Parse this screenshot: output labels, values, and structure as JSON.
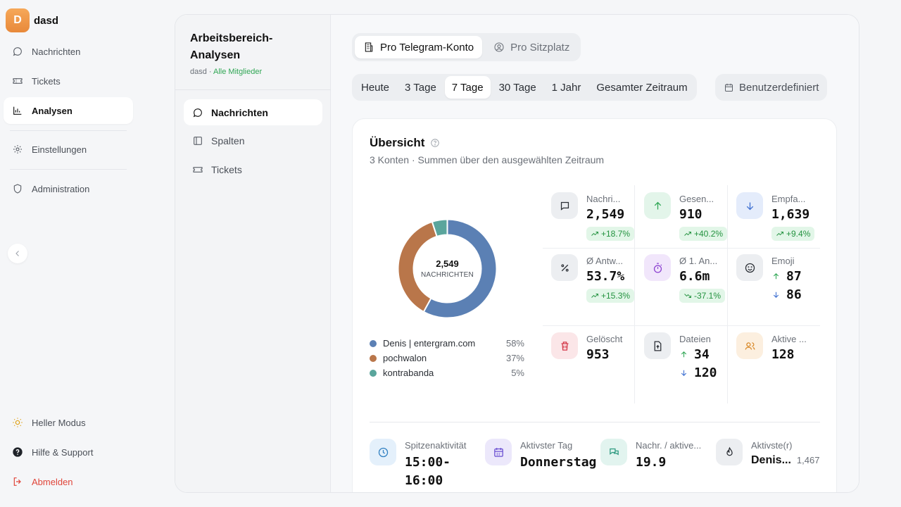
{
  "app": {
    "logo_letter": "D",
    "name": "dasd"
  },
  "sidebar": {
    "items": [
      {
        "label": "Nachrichten",
        "icon": "chat-bubble-icon"
      },
      {
        "label": "Tickets",
        "icon": "ticket-icon"
      },
      {
        "label": "Analysen",
        "icon": "bar-chart-icon",
        "active": true
      },
      {
        "label": "Einstellungen",
        "icon": "gear-icon"
      },
      {
        "label": "Administration",
        "icon": "shield-icon"
      }
    ],
    "footer": {
      "theme": "Heller Modus",
      "help": "Hilfe & Support",
      "logout": "Abmelden"
    }
  },
  "workspace": {
    "title": "Arbeitsbereich-Analysen",
    "sub_name": "dasd",
    "sub_sep": " · ",
    "sub_scope": "Alle Mitglieder",
    "items": [
      {
        "label": "Nachrichten",
        "active": true
      },
      {
        "label": "Spalten"
      },
      {
        "label": "Tickets"
      }
    ]
  },
  "view_toggle": {
    "options": [
      "Pro Telegram-Konto",
      "Pro Sitzplatz"
    ],
    "selected": "Pro Telegram-Konto"
  },
  "period": {
    "options": [
      "Heute",
      "3 Tage",
      "7 Tage",
      "30 Tage",
      "1 Jahr",
      "Gesamter Zeitraum"
    ],
    "selected": "7 Tage",
    "custom_label": "Benutzerdefiniert"
  },
  "overview": {
    "title": "Übersicht",
    "subtitle": "3 Konten · Summen über den ausgewählten Zeitraum",
    "donut": {
      "total": "2,549",
      "total_label": "NACHRICHTEN",
      "segments": [
        {
          "name": "Denis | entergram.com",
          "pct_label": "58%",
          "value": 0.58,
          "color": "#5b80b4"
        },
        {
          "name": "pochwalon",
          "pct_label": "37%",
          "value": 0.37,
          "color": "#b9764a"
        },
        {
          "name": "kontrabanda",
          "pct_label": "5%",
          "value": 0.05,
          "color": "#5aa59c"
        }
      ]
    },
    "stats": {
      "messages": {
        "label": "Nachri...",
        "value": "2,549",
        "delta": "+18.7%"
      },
      "sent": {
        "label": "Gesen...",
        "value": "910",
        "delta": "+40.2%"
      },
      "received": {
        "label": "Empfa...",
        "value": "1,639",
        "delta": "+9.4%"
      },
      "reply_rate": {
        "label": "Ø Antw...",
        "value": "53.7%",
        "delta": "+15.3%"
      },
      "first_reply": {
        "label": "Ø 1. An...",
        "value": "6.6m",
        "delta": "-37.1%"
      },
      "emoji": {
        "label": "Emoji",
        "up": "87",
        "down": "86"
      },
      "deleted": {
        "label": "Gelöscht",
        "value": "953"
      },
      "files": {
        "label": "Dateien",
        "up": "34",
        "down": "120"
      },
      "active": {
        "label": "Aktive ...",
        "value": "128"
      }
    },
    "kpis": {
      "peak": {
        "label": "Spitzenaktivität",
        "value": "15:00-\n16:00"
      },
      "day": {
        "label": "Aktivster Tag",
        "value": "Donnerstag"
      },
      "per_active": {
        "label": "Nachr. / aktive...",
        "value": "19.9"
      },
      "most_active": {
        "label": "Aktivste(r)",
        "name": "Denis...",
        "count": "1,467"
      }
    }
  }
}
